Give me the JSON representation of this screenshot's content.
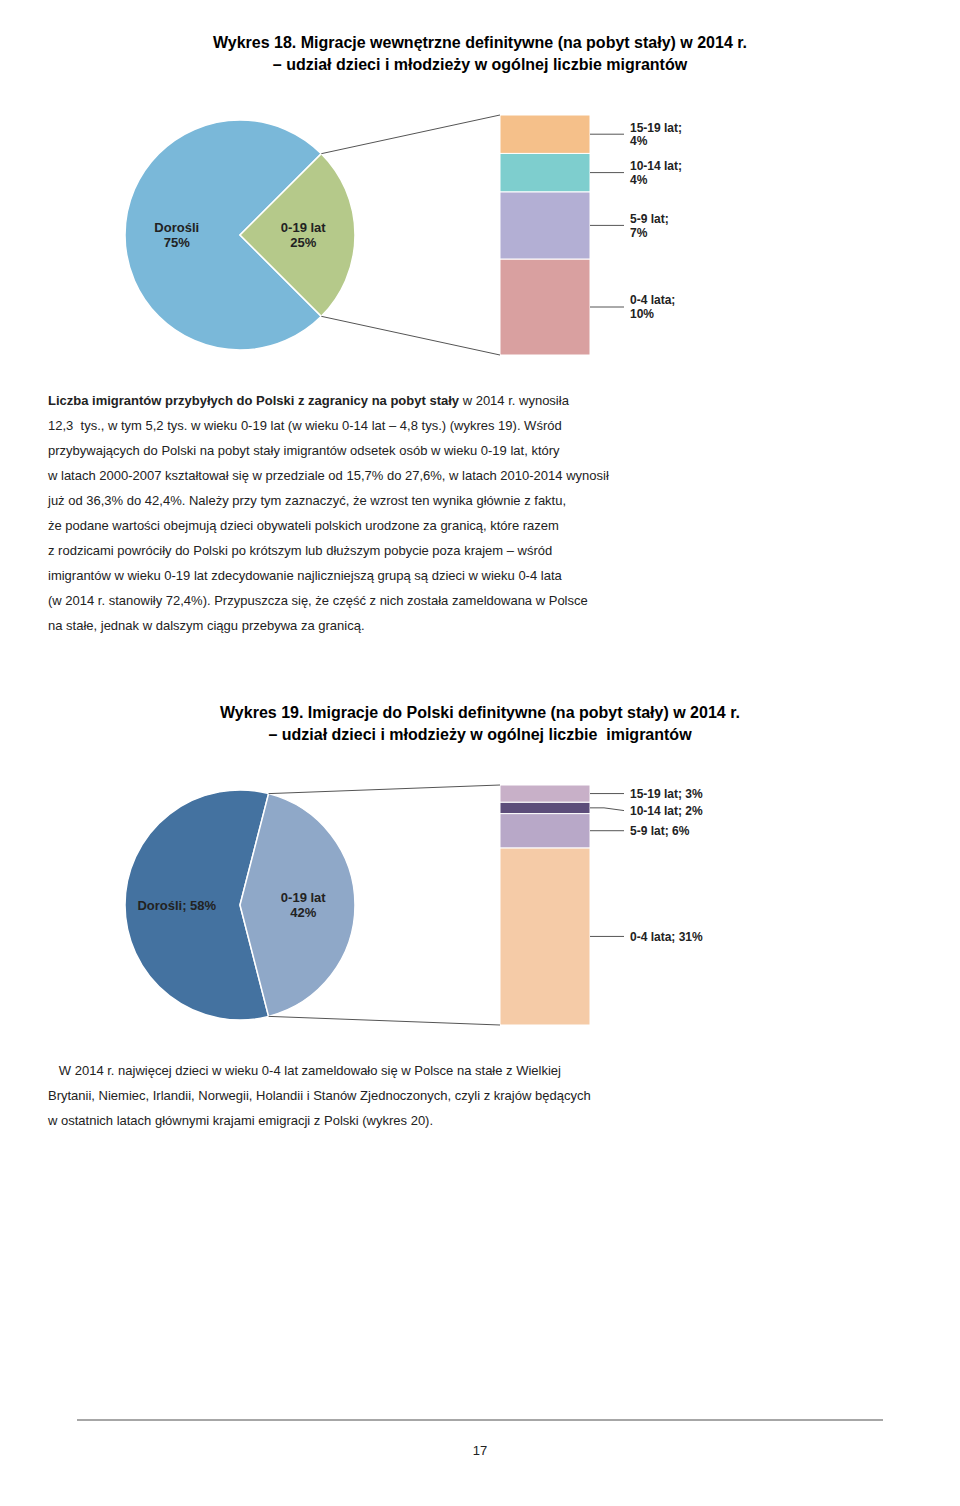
{
  "chart_data": [
    {
      "type": "pie",
      "title": "Wykres 18. Migracje wewnętrzne definitywne (na pobyt stały) w 2014 r.",
      "subtitle": "– udział dzieci i młodzieży w ogólnej liczbie migrantów",
      "values": [
        75,
        25
      ],
      "value_labels": [
        "Dorośli\n75%",
        "0-19 lat\n25%"
      ],
      "colors": [
        "#7ab8d9",
        "#b5c98a"
      ],
      "data_labels": true
    },
    {
      "type": "bar",
      "stacked": true,
      "values": [
        10,
        7,
        4,
        4
      ],
      "value_labels": [
        "0-4 lata;\n10%",
        "5-9 lat;\n7%",
        "10-14 lat;\n4%",
        "15-19 lat;\n4%"
      ],
      "colors": [
        "#d9a0a0",
        "#b3afd4",
        "#7ecece",
        "#f5c08a"
      ],
      "data_labels": true,
      "tick_labels": false
    },
    {
      "type": "pie",
      "title": "Wykres 19. Imigracje do Polski definitywne (na pobyt stały) w 2014 r.",
      "subtitle": "– udział dzieci i młodzieży w ogólnej liczbie  imigrantów",
      "values": [
        58,
        42
      ],
      "value_labels": [
        "Dorośli; 58%",
        "0-19 lat\n42%"
      ],
      "colors": [
        "#4472a0",
        "#8fa8c8"
      ],
      "data_labels": true
    },
    {
      "type": "bar",
      "stacked": true,
      "values": [
        31,
        6,
        2,
        3
      ],
      "value_labels": [
        "0-4 lata; 31%",
        "5-9 lat; 6%",
        "10-14 lat; 2%",
        "15-19 lat; 3%"
      ],
      "colors": [
        "#f5cba7",
        "#b8a8c8",
        "#5c4d7a",
        "#c8b0c8"
      ],
      "data_labels": true,
      "tick_labels": false
    }
  ],
  "paragraphs": [
    {
      "bold": "Liczba imigrantów przybyłych do Polski z zagranicy na pobyt stały",
      "lines": [
        " w 2014 r. wynosiła",
        "12,3  tys., w tym 5,2 tys. w wieku 0-19 lat (w wieku 0-14 lat – 4,8 tys.) (wykres 19). Wśród",
        "przybywających do Polski na pobyt stały imigrantów odsetek osób w wieku 0-19 lat, który",
        "w latach 2000-2007 kształtował się w przedziale od 15,7% do 27,6%, w latach 2010-2014 wynosił",
        "już od 36,3% do 42,4%. Należy przy tym zaznaczyć, że wzrost ten wynika głównie z faktu,",
        "że podane wartości obejmują dzieci obywateli polskich urodzone za granicą, które razem",
        "z rodzicami powróciły do Polski po krótszym lub dłuższym pobycie poza krajem – wśród",
        "imigrantów w wieku 0-19 lat zdecydowanie najliczniejszą grupą są dzieci w wieku 0-4 lata",
        "(w 2014 r. stanowiły 72,4%). Przypuszcza się, że część z nich została zameldowana w Polsce",
        "na stałe, jednak w dalszym ciągu przebywa za granicą."
      ]
    },
    {
      "lines": [
        "   W 2014 r. najwięcej dzieci w wieku 0-4 lat zameldowało się w Polsce na stałe z Wielkiej",
        "Brytanii, Niemiec, Irlandii, Norwegii, Holandii i Stanów Zjednoczonych, czyli z krajów będących",
        "w ostatnich latach głównymi krajami emigracji z Polski (wykres 20)."
      ]
    }
  ],
  "page_number": "17"
}
